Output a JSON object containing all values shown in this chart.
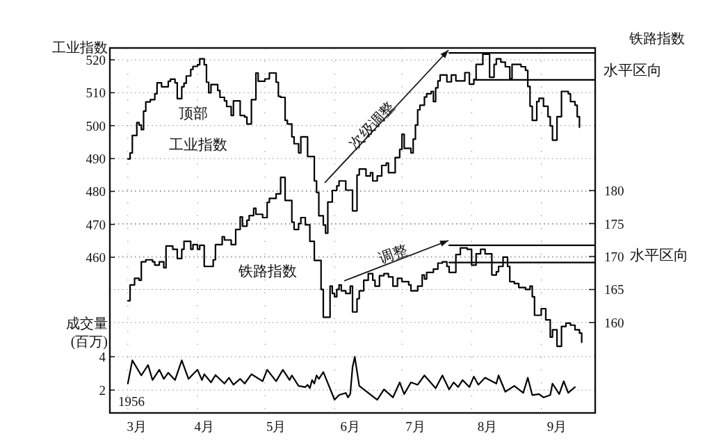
{
  "chart_data": {
    "type": "line",
    "ylabel": "工业指数",
    "y2label": "铁路指数",
    "y3label": "成交量 (百万)",
    "annotations": [
      "顶部",
      "次级调整",
      "调整",
      "水平区向",
      "水平区向",
      "1956"
    ],
    "xlim": [
      "1956-02-22",
      "1956-09-25"
    ],
    "xticks": [
      {
        "value": "1956-03-01",
        "label": null
      },
      {
        "value": "1956-04-01",
        "label": null
      },
      {
        "value": "1956-05-01",
        "label": null
      },
      {
        "value": "1956-06-01",
        "label": null
      },
      {
        "value": "1956-07-01",
        "label": null
      },
      {
        "value": "1956-08-01",
        "label": null
      },
      {
        "value": "1956-09-01",
        "label": null
      },
      {
        "value": "1956-03-05",
        "label": "3月"
      },
      {
        "value": "1956-04-04",
        "label": "4月"
      },
      {
        "value": "1956-05-06",
        "label": "5月"
      },
      {
        "value": "1956-06-08",
        "label": "6月"
      },
      {
        "value": "1956-07-07",
        "label": "7月"
      },
      {
        "value": "1956-08-08",
        "label": "8月"
      },
      {
        "value": "1956-09-08",
        "label": "9月"
      }
    ],
    "ylim": [
      412.7,
      523.6
    ],
    "yticks": [
      460,
      470,
      480,
      490,
      500,
      510,
      520
    ],
    "y2lim": [
      146.3,
      201.6
    ],
    "y2ticks": [
      160,
      165,
      170,
      175,
      180
    ],
    "y3lim": [
      0.63,
      22.5
    ],
    "y3ticks": [
      2,
      4
    ],
    "grid": true,
    "series": [
      {
        "name": "工业指数",
        "type": "step",
        "axis": "y",
        "color": "#000000",
        "x": [
          "1956-03-01",
          "1956-03-02",
          "1956-03-03",
          "1956-03-05",
          "1956-03-06",
          "1956-03-07",
          "1956-03-08",
          "1956-03-09",
          "1956-03-11",
          "1956-03-13",
          "1956-03-14",
          "1956-03-16",
          "1956-03-19",
          "1956-03-20",
          "1956-03-22",
          "1956-03-23",
          "1956-03-25",
          "1956-03-26",
          "1956-03-27",
          "1956-03-29",
          "1956-03-30",
          "1956-04-01",
          "1956-04-02",
          "1956-04-04",
          "1956-04-05",
          "1956-04-06",
          "1956-04-07",
          "1956-04-10",
          "1956-04-11",
          "1956-04-13",
          "1956-04-14",
          "1956-04-16",
          "1956-04-17",
          "1956-04-20",
          "1956-04-22",
          "1956-04-23",
          "1956-04-25",
          "1956-04-27",
          "1956-04-28",
          "1956-05-01",
          "1956-05-03",
          "1956-05-06",
          "1956-05-07",
          "1956-05-08",
          "1956-05-10",
          "1956-05-11",
          "1956-05-13",
          "1956-05-14",
          "1956-05-16",
          "1956-05-17",
          "1956-05-20",
          "1956-05-23",
          "1956-05-24",
          "1956-05-25",
          "1956-05-27",
          "1956-05-28",
          "1956-05-29",
          "1956-05-31",
          "1956-06-02",
          "1956-06-03",
          "1956-06-06",
          "1956-06-09",
          "1956-06-11",
          "1956-06-12",
          "1956-06-15",
          "1956-06-17",
          "1956-06-18",
          "1956-06-20",
          "1956-06-22",
          "1956-06-24",
          "1956-06-25",
          "1956-06-28",
          "1956-06-30",
          "1956-07-01",
          "1956-07-02",
          "1956-07-05",
          "1956-07-06",
          "1956-07-07",
          "1956-07-08",
          "1956-07-09",
          "1956-07-11",
          "1956-07-12",
          "1956-07-14",
          "1956-07-15",
          "1956-07-16",
          "1956-07-17",
          "1956-07-18",
          "1956-07-21",
          "1956-07-23",
          "1956-07-25",
          "1956-07-29",
          "1956-07-31",
          "1956-08-02",
          "1956-08-03",
          "1956-08-06",
          "1956-08-09",
          "1956-08-11",
          "1956-08-12",
          "1956-08-14",
          "1956-08-16",
          "1956-08-18",
          "1956-08-19",
          "1956-08-23",
          "1956-08-25",
          "1956-08-26",
          "1956-08-27",
          "1956-08-28",
          "1956-08-30",
          "1956-08-31",
          "1956-09-02",
          "1956-09-04",
          "1956-09-05",
          "1956-09-06",
          "1956-09-08",
          "1956-09-10",
          "1956-09-13",
          "1956-09-14",
          "1956-09-16",
          "1956-09-17",
          "1956-09-18"
        ],
        "values": [
          489.9,
          491.7,
          497.0,
          500.9,
          500.2,
          498.8,
          504.4,
          507.2,
          507.9,
          509.7,
          513.0,
          511.8,
          513.5,
          514.1,
          513.0,
          508.2,
          511.8,
          512.9,
          515.1,
          517.1,
          518.0,
          518.5,
          520.3,
          518.5,
          513.2,
          510.0,
          512.5,
          510.7,
          508.6,
          507.5,
          505.8,
          503.1,
          507.5,
          503.1,
          502.6,
          500.5,
          507.9,
          516.0,
          513.5,
          514.2,
          516.0,
          513.2,
          508.9,
          508.6,
          501.6,
          500.5,
          496.6,
          494.5,
          491.7,
          496.6,
          490.6,
          483.2,
          479.7,
          472.6,
          469.8,
          467.3,
          476.8,
          480.3,
          481.7,
          483.2,
          480.4,
          474.1,
          485.0,
          486.8,
          484.7,
          485.7,
          483.2,
          484.7,
          487.9,
          488.6,
          485.7,
          490.3,
          492.8,
          497.4,
          493.1,
          491.7,
          495.9,
          500.2,
          504.8,
          506.2,
          508.7,
          509.7,
          510.4,
          507.3,
          511.5,
          513.6,
          515.4,
          513.3,
          515.4,
          513.6,
          516.1,
          512.6,
          514.0,
          518.6,
          521.7,
          514.7,
          518.6,
          520.3,
          519.3,
          517.9,
          514.3,
          518.6,
          517.9,
          516.8,
          511.9,
          505.9,
          501.6,
          507.3,
          508.3,
          505.9,
          502.7,
          499.9,
          495.6,
          502.7,
          510.4,
          509.7,
          507.3,
          506.2,
          502.7,
          499.5
        ]
      },
      {
        "name": "铁路指数",
        "type": "step",
        "axis": "y2",
        "color": "#000000",
        "x": [
          "1956-03-01",
          "1956-03-02",
          "1956-03-04",
          "1956-03-06",
          "1956-03-07",
          "1956-03-09",
          "1956-03-12",
          "1956-03-13",
          "1956-03-15",
          "1956-03-17",
          "1956-03-18",
          "1956-03-21",
          "1956-03-23",
          "1956-03-25",
          "1956-03-26",
          "1956-03-29",
          "1956-03-30",
          "1956-04-01",
          "1956-04-02",
          "1956-04-04",
          "1956-04-08",
          "1956-04-09",
          "1956-04-12",
          "1956-04-13",
          "1956-04-16",
          "1956-04-18",
          "1956-04-20",
          "1956-04-21",
          "1956-04-23",
          "1956-04-24",
          "1956-04-26",
          "1956-04-27",
          "1956-04-30",
          "1956-05-02",
          "1956-05-03",
          "1956-05-06",
          "1956-05-08",
          "1956-05-10",
          "1956-05-13",
          "1956-05-14",
          "1956-05-16",
          "1956-05-17",
          "1956-05-19",
          "1956-05-21",
          "1956-05-23",
          "1956-05-26",
          "1956-05-27",
          "1956-05-30",
          "1956-05-31",
          "1956-06-01",
          "1956-06-02",
          "1956-06-03",
          "1956-06-04",
          "1956-06-06",
          "1956-06-08",
          "1956-06-09",
          "1956-06-11",
          "1956-06-12",
          "1956-06-14",
          "1956-06-16",
          "1956-06-18",
          "1956-06-19",
          "1956-06-21",
          "1956-06-23",
          "1956-06-25",
          "1956-06-27",
          "1956-06-29",
          "1956-07-01",
          "1956-07-04",
          "1956-07-05",
          "1956-07-08",
          "1956-07-10",
          "1956-07-11",
          "1956-07-12",
          "1956-07-15",
          "1956-07-17",
          "1956-07-19",
          "1956-07-21",
          "1956-07-22",
          "1956-07-25",
          "1956-07-27",
          "1956-07-30",
          "1956-08-01",
          "1956-08-03",
          "1956-08-05",
          "1956-08-07",
          "1956-08-10",
          "1956-08-12",
          "1956-08-13",
          "1956-08-15",
          "1956-08-17",
          "1956-08-18",
          "1956-08-20",
          "1956-08-22",
          "1956-08-25",
          "1956-08-27",
          "1956-08-28",
          "1956-08-29",
          "1956-09-01",
          "1956-09-03",
          "1956-09-05",
          "1956-09-06",
          "1956-09-08",
          "1956-09-10",
          "1956-09-12",
          "1956-09-14",
          "1956-09-16",
          "1956-09-18",
          "1956-09-19"
        ],
        "values": [
          163.3,
          165.7,
          166.7,
          166.4,
          169.2,
          169.5,
          169.2,
          168.7,
          169.2,
          168.3,
          171.6,
          171.1,
          169.7,
          171.1,
          172.3,
          171.1,
          171.8,
          171.1,
          171.7,
          168.5,
          169.5,
          171.8,
          173.0,
          172.5,
          171.8,
          174.1,
          176.0,
          174.6,
          175.5,
          176.2,
          177.3,
          176.4,
          175.9,
          178.2,
          178.8,
          179.5,
          182.0,
          178.5,
          175.2,
          174.1,
          175.0,
          175.9,
          174.8,
          172.3,
          169.4,
          165.0,
          160.8,
          165.5,
          164.4,
          163.9,
          165.0,
          165.7,
          164.8,
          164.4,
          165.5,
          161.6,
          163.6,
          164.8,
          166.4,
          167.4,
          166.4,
          165.5,
          167.1,
          167.4,
          166.9,
          165.5,
          166.7,
          166.2,
          165.7,
          164.8,
          165.5,
          167.2,
          166.6,
          167.6,
          168.1,
          169.0,
          169.2,
          168.5,
          167.6,
          170.3,
          171.3,
          171.1,
          168.7,
          170.4,
          171.1,
          170.4,
          167.2,
          167.7,
          168.5,
          169.9,
          168.5,
          166.2,
          165.9,
          165.3,
          165.0,
          165.5,
          163.9,
          161.1,
          162.1,
          160.4,
          157.8,
          158.9,
          156.4,
          159.4,
          159.9,
          159.6,
          158.9,
          158.4,
          157.0
        ]
      },
      {
        "axis": "y3",
        "color": "#000000",
        "x": [
          "1956-03-01",
          "1956-03-03",
          "1956-03-07",
          "1956-03-10",
          "1956-03-12",
          "1956-03-15",
          "1956-03-17",
          "1956-03-19",
          "1956-03-22",
          "1956-03-25",
          "1956-03-28",
          "1956-04-01",
          "1956-04-03",
          "1956-04-04",
          "1956-04-07",
          "1956-04-09",
          "1956-04-13",
          "1956-04-15",
          "1956-04-17",
          "1956-04-20",
          "1956-04-22",
          "1956-04-25",
          "1956-04-30",
          "1956-05-02",
          "1956-05-06",
          "1956-05-09",
          "1956-05-12",
          "1956-05-13",
          "1956-05-16",
          "1956-05-19",
          "1956-05-20",
          "1956-05-21",
          "1956-05-22",
          "1956-05-23",
          "1956-05-24",
          "1956-05-25",
          "1956-05-27",
          "1956-06-01",
          "1956-06-03",
          "1956-06-06",
          "1956-06-07",
          "1956-06-08",
          "1956-06-09",
          "1956-06-10",
          "1956-06-12",
          "1956-06-20",
          "1956-06-23",
          "1956-06-27",
          "1956-06-30",
          "1956-07-02",
          "1956-07-05",
          "1956-07-08",
          "1956-07-11",
          "1956-07-16",
          "1956-07-19",
          "1956-07-22",
          "1956-07-24",
          "1956-07-26",
          "1956-07-28",
          "1956-07-31",
          "1956-08-02",
          "1956-08-04",
          "1956-08-07",
          "1956-08-12",
          "1956-08-13",
          "1956-08-16",
          "1956-08-20",
          "1956-08-24",
          "1956-08-26",
          "1956-08-28",
          "1956-08-31",
          "1956-09-02",
          "1956-09-05",
          "1956-09-06",
          "1956-09-09",
          "1956-09-11",
          "1956-09-13",
          "1956-09-16"
        ],
        "values": [
          2.39,
          3.78,
          2.88,
          3.5,
          2.6,
          3.22,
          2.67,
          3.04,
          2.6,
          3.78,
          2.67,
          3.22,
          2.6,
          2.95,
          2.46,
          2.9,
          2.39,
          2.74,
          2.32,
          2.67,
          2.39,
          2.95,
          2.53,
          3.22,
          2.53,
          3.22,
          2.6,
          2.88,
          2.25,
          2.18,
          2.32,
          2.11,
          2.6,
          2.39,
          2.88,
          2.67,
          3.08,
          1.42,
          1.7,
          1.83,
          1.56,
          1.76,
          3.36,
          3.99,
          2.25,
          1.42,
          2.04,
          1.56,
          2.46,
          1.76,
          2.46,
          2.32,
          2.88,
          2.11,
          2.88,
          2.04,
          2.46,
          2.18,
          2.6,
          2.18,
          2.81,
          2.32,
          2.74,
          2.39,
          2.88,
          1.9,
          2.25,
          1.83,
          2.74,
          1.7,
          1.76,
          1.56,
          1.7,
          2.39,
          1.76,
          2.53,
          1.83,
          2.18
        ]
      },
      {
        "axis": "y",
        "color": "#000000",
        "x": [
          "1956-07-22",
          "1956-09-25"
        ],
        "values": [
          522.1,
          522.1
        ]
      },
      {
        "axis": "y",
        "color": "#000000",
        "x": [
          "1956-08-02",
          "1956-09-25"
        ],
        "values": [
          513.9,
          513.9
        ]
      },
      {
        "axis": "y2",
        "color": "#000000",
        "x": [
          "1956-07-22",
          "1956-09-25"
        ],
        "values": [
          171.7,
          171.7
        ]
      },
      {
        "axis": "y2",
        "color": "#000000",
        "x": [
          "1956-07-22",
          "1956-09-25"
        ],
        "values": [
          169.1,
          169.1
        ]
      }
    ]
  }
}
